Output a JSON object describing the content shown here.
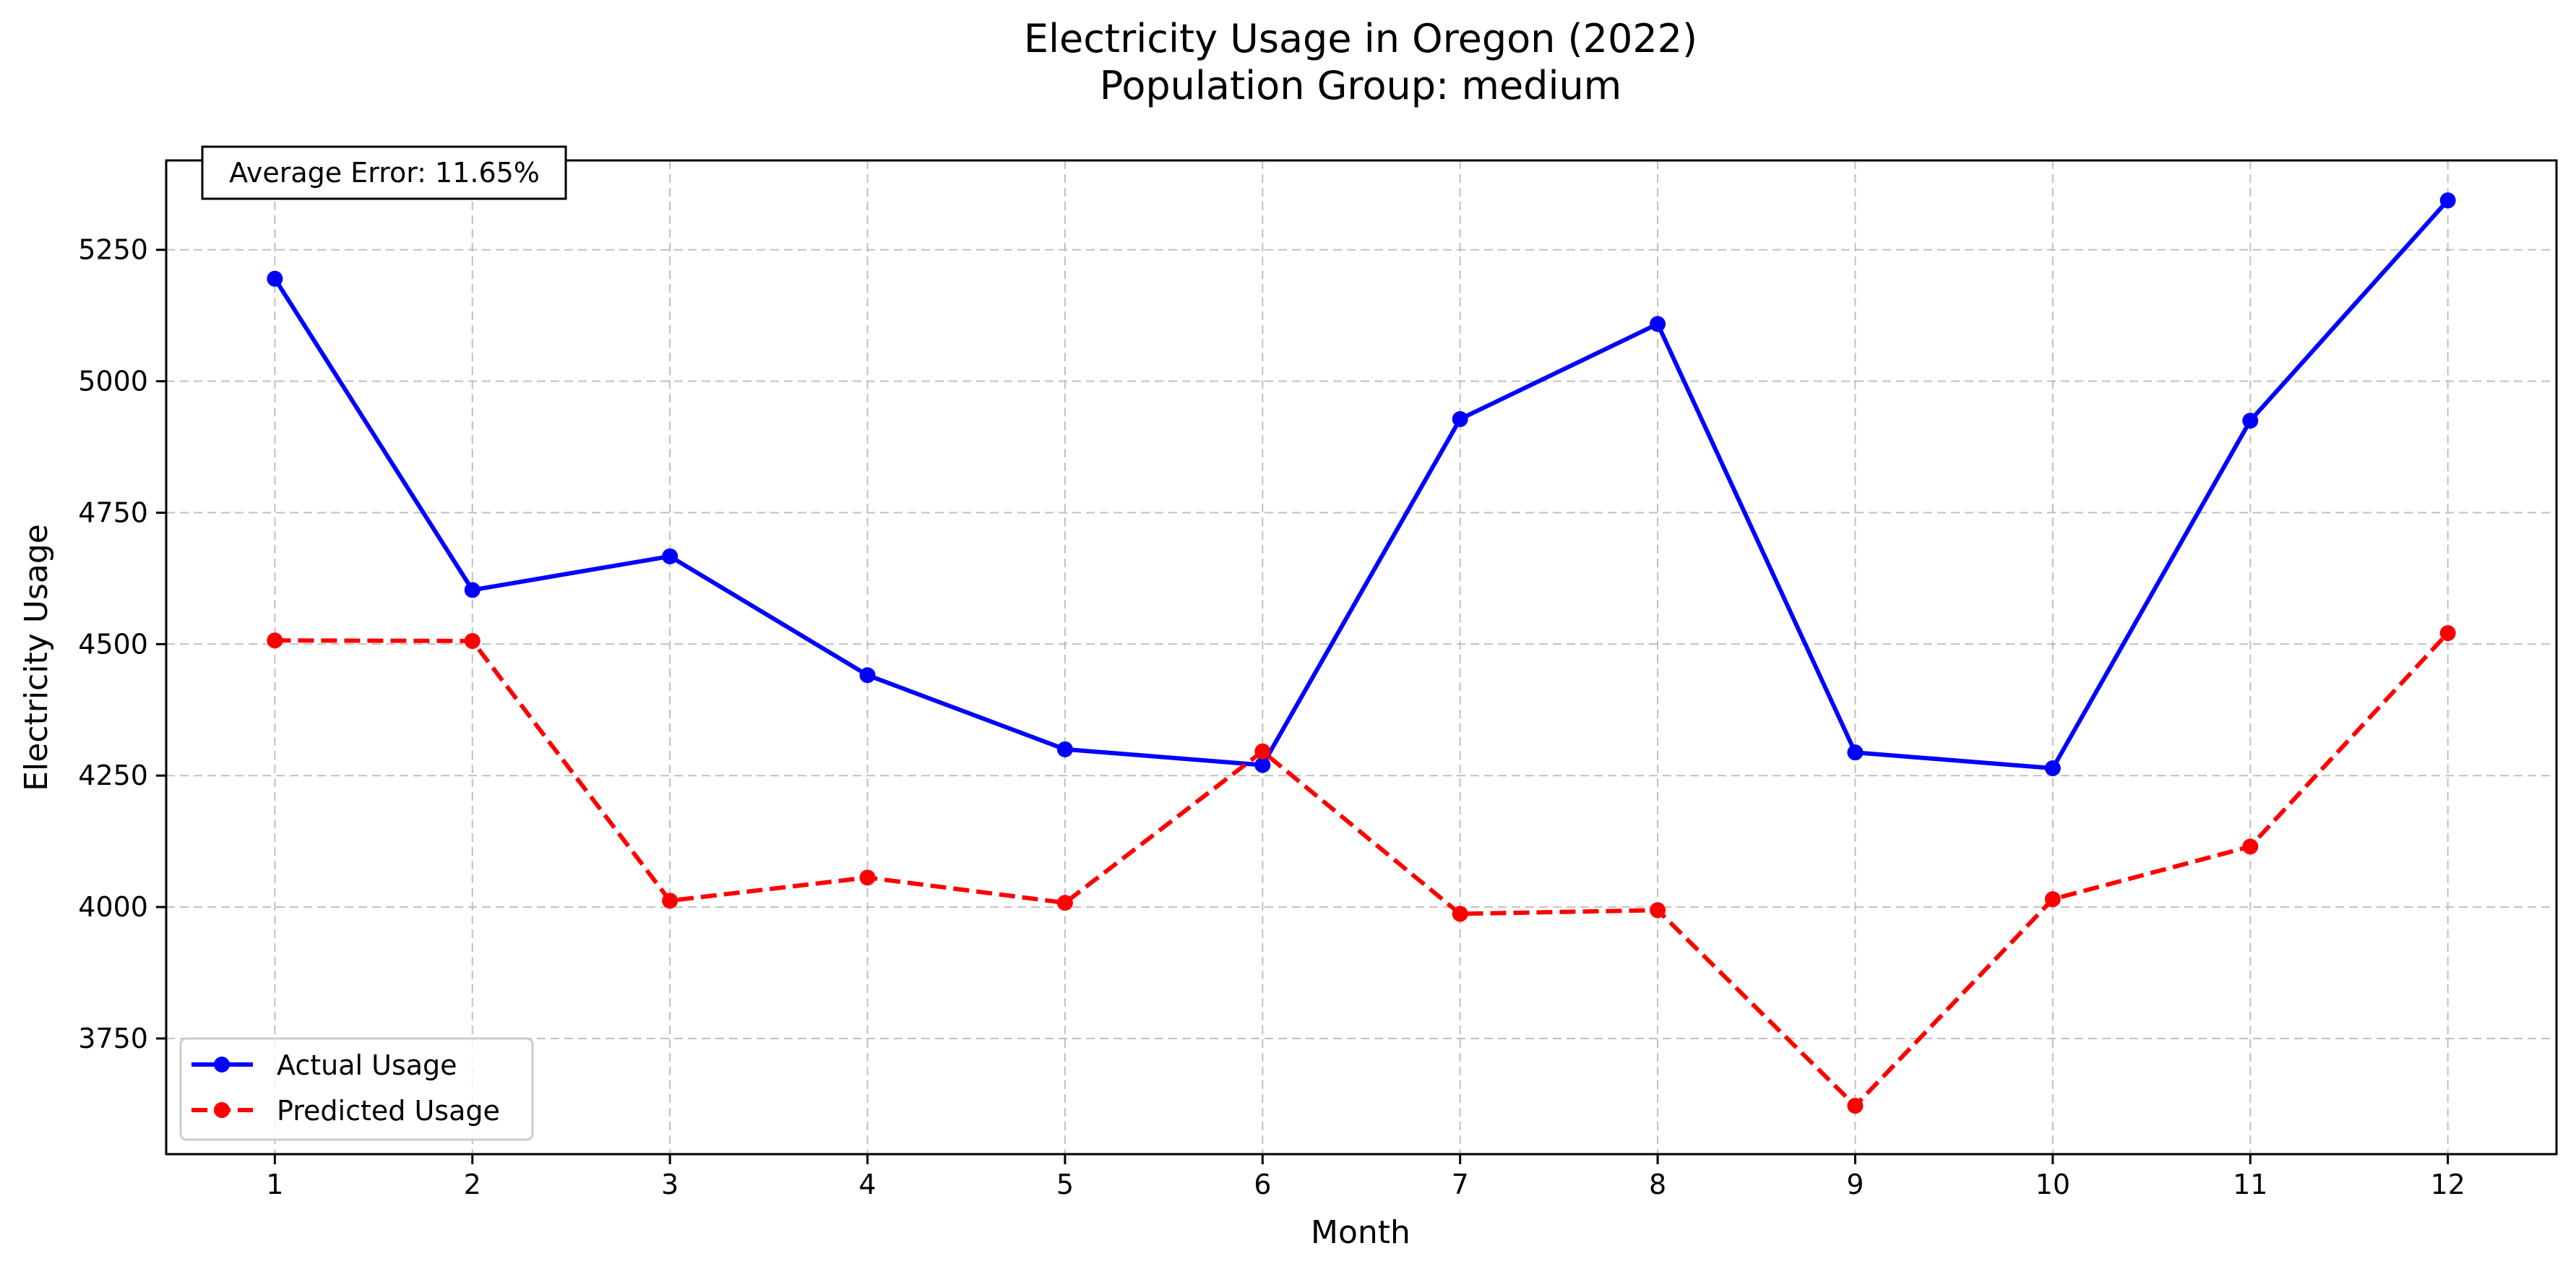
{
  "chart_data": {
    "type": "line",
    "title": "Electricity Usage in Oregon (2022)",
    "subtitle": "Population Group: medium",
    "xlabel": "Month",
    "ylabel": "Electricity Usage",
    "x": [
      1,
      2,
      3,
      4,
      5,
      6,
      7,
      8,
      9,
      10,
      11,
      12
    ],
    "xticks": [
      "1",
      "2",
      "3",
      "4",
      "5",
      "6",
      "7",
      "8",
      "9",
      "10",
      "11",
      "12"
    ],
    "xlim": [
      0.45,
      12.55
    ],
    "ylim": [
      3530,
      5420
    ],
    "yticks": [
      3750,
      4000,
      4250,
      4500,
      4750,
      5000,
      5250
    ],
    "grid": true,
    "legend_position": "lower-left",
    "annotation": "Average Error: 11.65%",
    "series": [
      {
        "name": "Actual Usage",
        "color": "#0000ff",
        "style": "solid",
        "marker": "circle",
        "values": [
          5195,
          4603,
          4667,
          4441,
          4300,
          4270,
          4928,
          5109,
          4294,
          4264,
          4925,
          5344
        ]
      },
      {
        "name": "Predicted Usage",
        "color": "#ff0000",
        "style": "dashed",
        "marker": "circle",
        "values": [
          4507,
          4506,
          4012,
          4056,
          4008,
          4296,
          3987,
          3994,
          3622,
          4015,
          4115,
          4521
        ]
      }
    ]
  }
}
